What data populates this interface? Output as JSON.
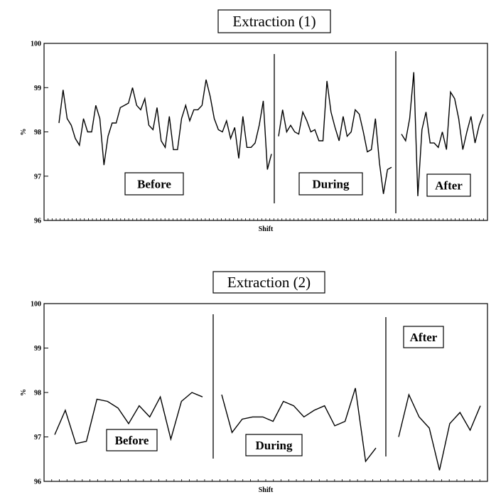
{
  "chart_data": [
    {
      "type": "line",
      "title": "Extraction (1)",
      "xlabel": "Shift",
      "ylabel": "%",
      "ylim": [
        96,
        100
      ],
      "yticks": [
        96,
        97,
        98,
        99,
        100
      ],
      "grid": false,
      "segments": [
        {
          "name": "Before",
          "values": [
            98.2,
            98.95,
            98.3,
            98.15,
            97.85,
            97.7,
            98.3,
            98.0,
            98.0,
            98.6,
            98.3,
            97.25,
            97.9,
            98.2,
            98.2,
            98.55,
            98.6,
            98.65,
            99.0,
            98.6,
            98.5,
            98.75,
            98.15,
            98.05,
            98.55,
            97.8,
            97.65,
            98.35,
            97.6,
            97.6,
            98.3,
            98.6,
            98.25,
            98.5,
            98.5,
            98.6,
            99.18,
            98.8,
            98.3,
            98.05,
            98.0,
            98.25,
            97.85,
            98.1,
            97.4,
            98.35,
            97.65,
            97.65,
            97.75,
            98.15,
            98.7,
            97.15,
            97.5
          ]
        },
        {
          "name": "During",
          "values": [
            97.9,
            98.5,
            98.0,
            98.15,
            98.0,
            97.95,
            98.45,
            98.25,
            98.0,
            98.05,
            97.8,
            97.8,
            99.15,
            98.45,
            98.1,
            97.8,
            98.35,
            97.9,
            98.0,
            98.5,
            98.4,
            98.0,
            97.55,
            97.6,
            98.3,
            97.3,
            96.6,
            97.15,
            97.2
          ]
        },
        {
          "name": "After",
          "values": [
            97.95,
            97.8,
            98.3,
            99.35,
            96.55,
            98.05,
            98.45,
            97.75,
            97.75,
            97.65,
            98.0,
            97.6,
            98.9,
            98.75,
            98.3,
            97.6,
            98.0,
            98.35,
            97.75,
            98.15,
            98.4
          ]
        }
      ]
    },
    {
      "type": "line",
      "title": "Extraction (2)",
      "xlabel": "Shift",
      "ylabel": "%",
      "ylim": [
        96,
        100
      ],
      "yticks": [
        96,
        97,
        98,
        99,
        100
      ],
      "grid": false,
      "segments": [
        {
          "name": "Before",
          "values": [
            97.05,
            97.6,
            96.85,
            96.9,
            97.85,
            97.8,
            97.65,
            97.3,
            97.7,
            97.45,
            97.9,
            96.95,
            97.8,
            98.0,
            97.9
          ]
        },
        {
          "name": "During",
          "values": [
            97.95,
            97.1,
            97.4,
            97.45,
            97.45,
            97.35,
            97.8,
            97.7,
            97.45,
            97.6,
            97.7,
            97.25,
            97.35,
            98.1,
            96.45,
            96.75
          ]
        },
        {
          "name": "After",
          "values": [
            97.0,
            97.95,
            97.45,
            97.2,
            96.25,
            97.3,
            97.55,
            97.15,
            97.7
          ]
        }
      ]
    }
  ]
}
